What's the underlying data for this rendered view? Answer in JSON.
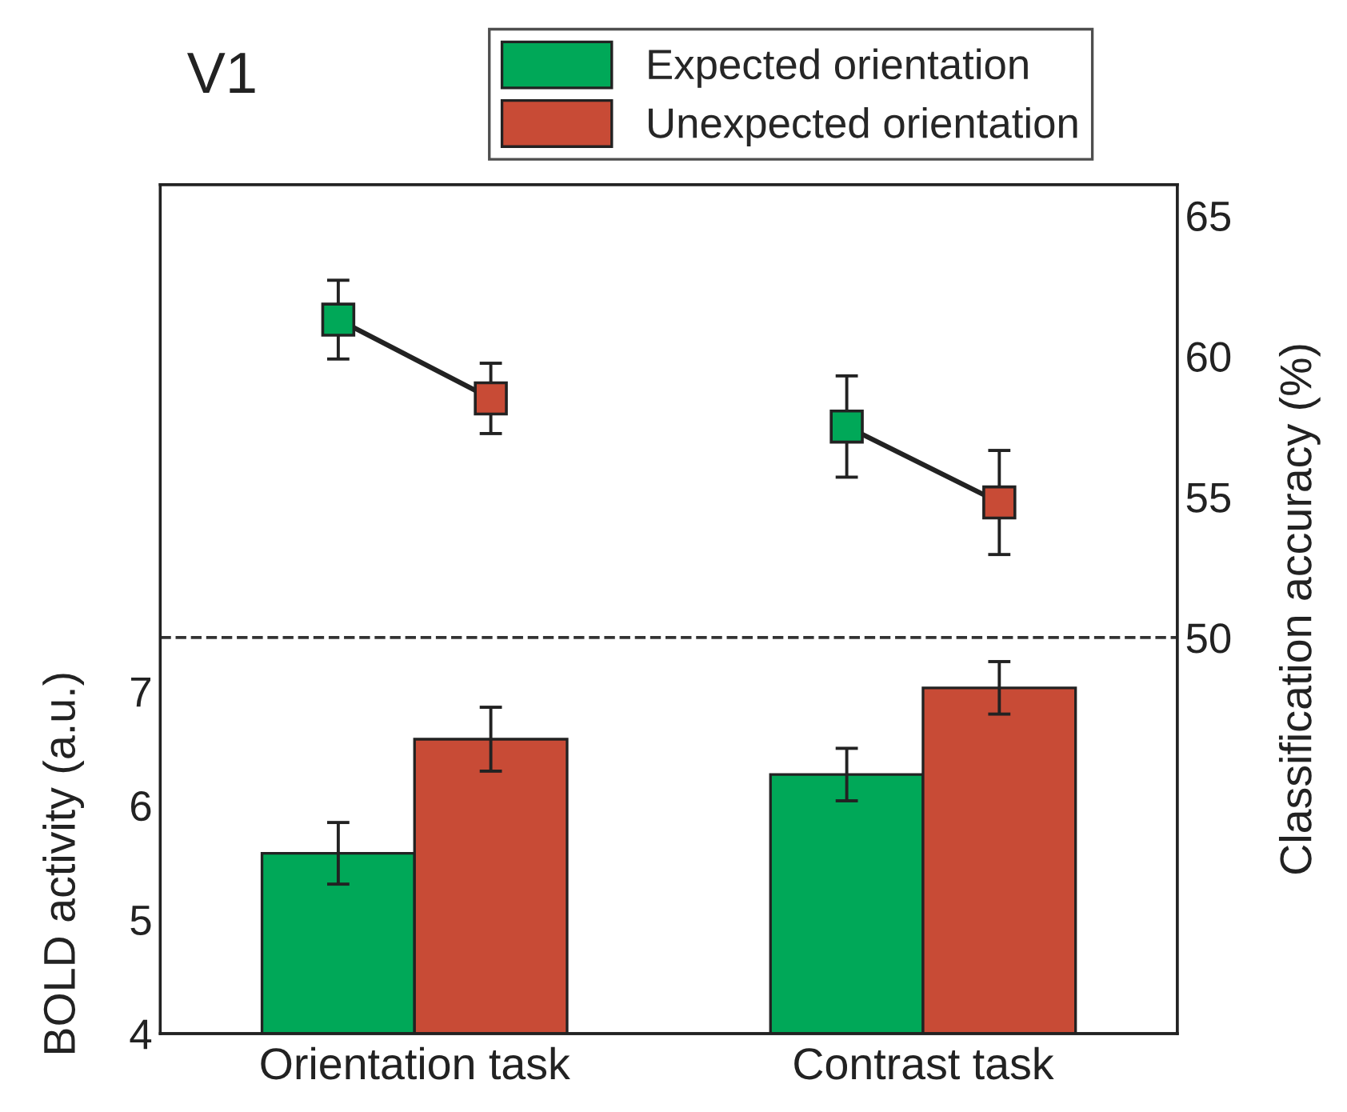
{
  "chart_data": {
    "type": "bar",
    "title": "V1",
    "ylabel": "BOLD activity (a.u.)",
    "y2label": "Classification accuracy (%)",
    "categories": [
      "Orientation task",
      "Contrast task"
    ],
    "series": [
      {
        "name": "Expected orientation",
        "color": "#00a858",
        "values": [
          5.58,
          6.27
        ],
        "errors": [
          0.27,
          0.23
        ]
      },
      {
        "name": "Unexpected orientation",
        "color": "#c84b36",
        "values": [
          6.58,
          7.03
        ],
        "errors": [
          0.28,
          0.23
        ]
      },
      {
        "type": "scatter",
        "axis": "y2",
        "x": [
          "Orientation task",
          "Contrast task"
        ],
        "color": "#00a858",
        "values": [
          61.3,
          57.5
        ],
        "errors": [
          1.4,
          1.8
        ],
        "marker": "square"
      },
      {
        "type": "scatter",
        "axis": "y2",
        "x": [
          "Orientation task",
          "Contrast task"
        ],
        "color": "#c84b36",
        "values": [
          58.5,
          54.8
        ],
        "errors": [
          1.25,
          1.85
        ],
        "marker": "square"
      }
    ],
    "ylim": [
      4,
      11.44
    ],
    "yticks": [
      4,
      5,
      6,
      7
    ],
    "y2lim": [
      35.92,
      66.1
    ],
    "y2ticks": [
      50,
      55,
      60,
      65
    ],
    "ref_lines": [
      {
        "axis": "y2",
        "value": 50,
        "line_style": "dashed",
        "color": "#333333"
      }
    ],
    "legend": "top",
    "grid": false
  }
}
